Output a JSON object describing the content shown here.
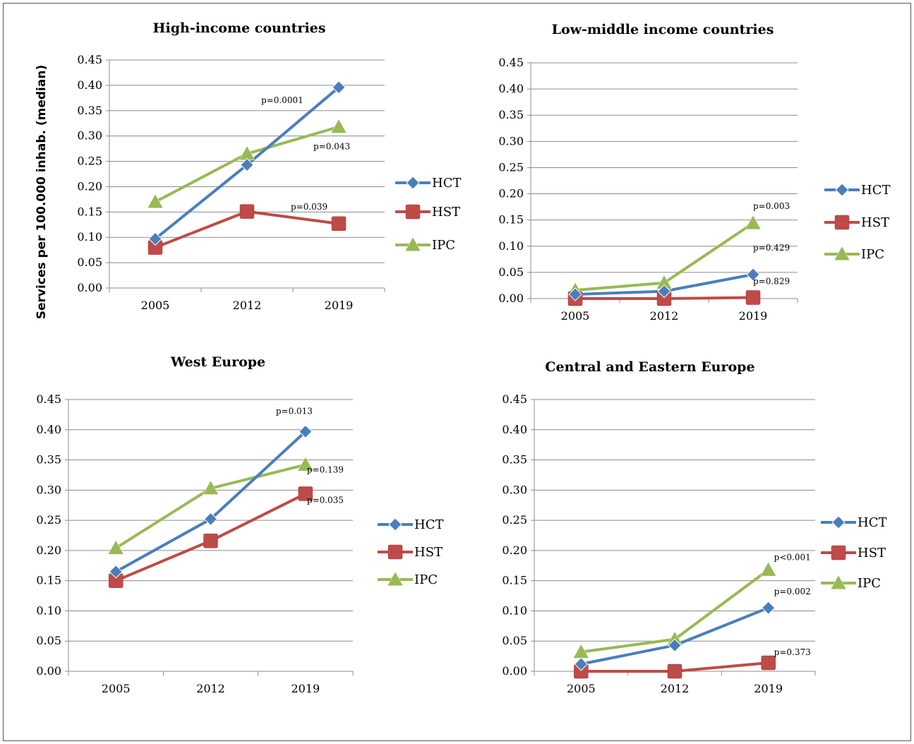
{
  "page": {
    "ylabel": "Services per 100.000 inhab. (median)"
  },
  "colors": {
    "HCT": "#4a7ebb",
    "HST": "#be4b48",
    "IPC": "#98b954"
  },
  "chart_data": [
    {
      "type": "line",
      "title": "High-income countries",
      "categories": [
        "2005",
        "2012",
        "2019"
      ],
      "ylim": [
        0,
        0.45
      ],
      "yticks": [
        "0.00",
        "0.05",
        "0.10",
        "0.15",
        "0.20",
        "0.25",
        "0.30",
        "0.35",
        "0.40",
        "0.45"
      ],
      "series": [
        {
          "name": "HCT",
          "values": [
            0.097,
            0.243,
            0.396
          ],
          "marker": "diamond"
        },
        {
          "name": "HST",
          "values": [
            0.08,
            0.151,
            0.127
          ],
          "marker": "square"
        },
        {
          "name": "IPC",
          "values": [
            0.17,
            0.265,
            0.318
          ],
          "marker": "triangle"
        }
      ],
      "annotations": [
        {
          "text": "p=0.0001",
          "series": "HCT"
        },
        {
          "text": "p=0.043",
          "series": "IPC"
        },
        {
          "text": "p=0.039",
          "series": "HST"
        }
      ]
    },
    {
      "type": "line",
      "title": "Low-middle income countries",
      "categories": [
        "2005",
        "2012",
        "2019"
      ],
      "ylim": [
        0,
        0.45
      ],
      "yticks": [
        "0.00",
        "0.05",
        "0.10",
        "0.15",
        "0.20",
        "0.25",
        "0.30",
        "0.35",
        "0.40",
        "0.45"
      ],
      "series": [
        {
          "name": "HCT",
          "values": [
            0.008,
            0.014,
            0.046
          ],
          "marker": "diamond"
        },
        {
          "name": "HST",
          "values": [
            0.0,
            0.0,
            0.002
          ],
          "marker": "square"
        },
        {
          "name": "IPC",
          "values": [
            0.016,
            0.03,
            0.144
          ],
          "marker": "triangle"
        }
      ],
      "annotations": [
        {
          "text": "p=0.003",
          "series": "IPC"
        },
        {
          "text": "p=0.429",
          "series": "HCT"
        },
        {
          "text": "p=0.829",
          "series": "HST"
        }
      ]
    },
    {
      "type": "line",
      "title": "West Europe",
      "categories": [
        "2005",
        "2012",
        "2019"
      ],
      "ylim": [
        0,
        0.45
      ],
      "yticks": [
        "0.00",
        "0.05",
        "0.10",
        "0.15",
        "0.20",
        "0.25",
        "0.30",
        "0.35",
        "0.40",
        "0.45"
      ],
      "series": [
        {
          "name": "HCT",
          "values": [
            0.165,
            0.252,
            0.397
          ],
          "marker": "diamond"
        },
        {
          "name": "HST",
          "values": [
            0.15,
            0.216,
            0.294
          ],
          "marker": "square"
        },
        {
          "name": "IPC",
          "values": [
            0.204,
            0.303,
            0.342
          ],
          "marker": "triangle"
        }
      ],
      "annotations": [
        {
          "text": "p=0.013",
          "series": "HCT"
        },
        {
          "text": "p=0.139",
          "series": "IPC"
        },
        {
          "text": "p=0.035",
          "series": "HST"
        }
      ]
    },
    {
      "type": "line",
      "title": "Central and Eastern Europe",
      "categories": [
        "2005",
        "2012",
        "2019"
      ],
      "ylim": [
        0,
        0.45
      ],
      "yticks": [
        "0.00",
        "0.05",
        "0.10",
        "0.15",
        "0.20",
        "0.25",
        "0.30",
        "0.35",
        "0.40",
        "0.45"
      ],
      "series": [
        {
          "name": "HCT",
          "values": [
            0.012,
            0.043,
            0.105
          ],
          "marker": "diamond"
        },
        {
          "name": "HST",
          "values": [
            0.0,
            0.0,
            0.014
          ],
          "marker": "square"
        },
        {
          "name": "IPC",
          "values": [
            0.032,
            0.053,
            0.168
          ],
          "marker": "triangle"
        }
      ],
      "annotations": [
        {
          "text": "p<0.001",
          "series": "IPC"
        },
        {
          "text": "p=0.002",
          "series": "HCT"
        },
        {
          "text": "p=0.373",
          "series": "HST"
        }
      ]
    }
  ]
}
